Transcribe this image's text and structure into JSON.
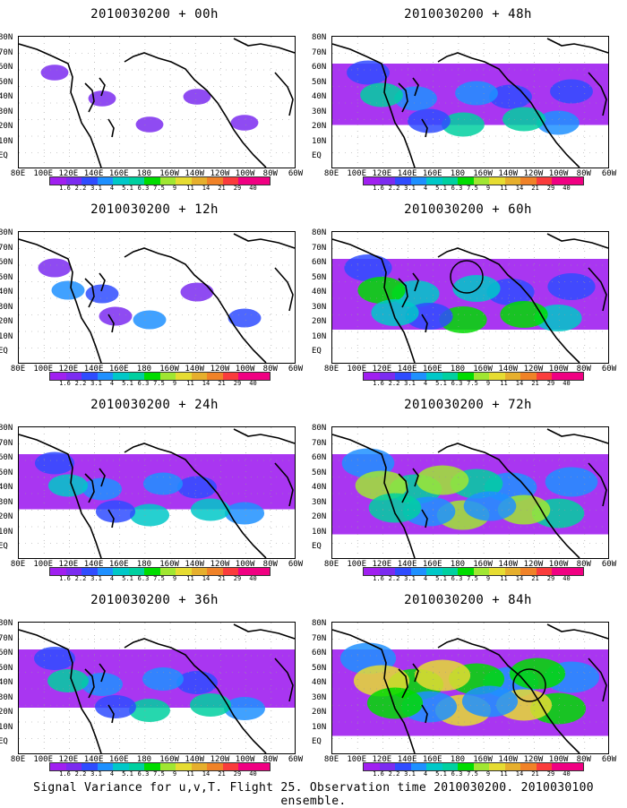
{
  "panels": [
    {
      "title": "2010030200 + 00h",
      "intensity": 0.08
    },
    {
      "title": "2010030200 + 48h",
      "intensity": 0.55
    },
    {
      "title": "2010030200 + 12h",
      "intensity": 0.25
    },
    {
      "title": "2010030200 + 60h",
      "intensity": 0.7
    },
    {
      "title": "2010030200 + 24h",
      "intensity": 0.45
    },
    {
      "title": "2010030200 + 72h",
      "intensity": 0.85
    },
    {
      "title": "2010030200 + 36h",
      "intensity": 0.5
    },
    {
      "title": "2010030200 + 84h",
      "intensity": 0.95
    }
  ],
  "lat_labels": [
    "80N",
    "70N",
    "60N",
    "50N",
    "40N",
    "30N",
    "20N",
    "10N",
    "EQ"
  ],
  "lon_labels": [
    "80E",
    "100E",
    "120E",
    "140E",
    "160E",
    "180",
    "160W",
    "140W",
    "120W",
    "100W",
    "80W",
    "60W"
  ],
  "colorbar": {
    "colors": [
      "#a020f0",
      "#7b2cf0",
      "#2f4cff",
      "#1e90ff",
      "#00c8c8",
      "#00d0a0",
      "#00dc00",
      "#a0e632",
      "#e6dc32",
      "#e6af2d",
      "#f08228",
      "#fa3c3c",
      "#f00082"
    ],
    "ticks": [
      "1.6",
      "2.2",
      "3.1",
      "4",
      "5.1",
      "6.3",
      "7.5",
      "9",
      "11",
      "14",
      "21",
      "29",
      "40"
    ]
  },
  "caption": "Signal Variance for u,v,T. Flight 25. Observation time 2010030200. 2010030100 ensemble."
}
